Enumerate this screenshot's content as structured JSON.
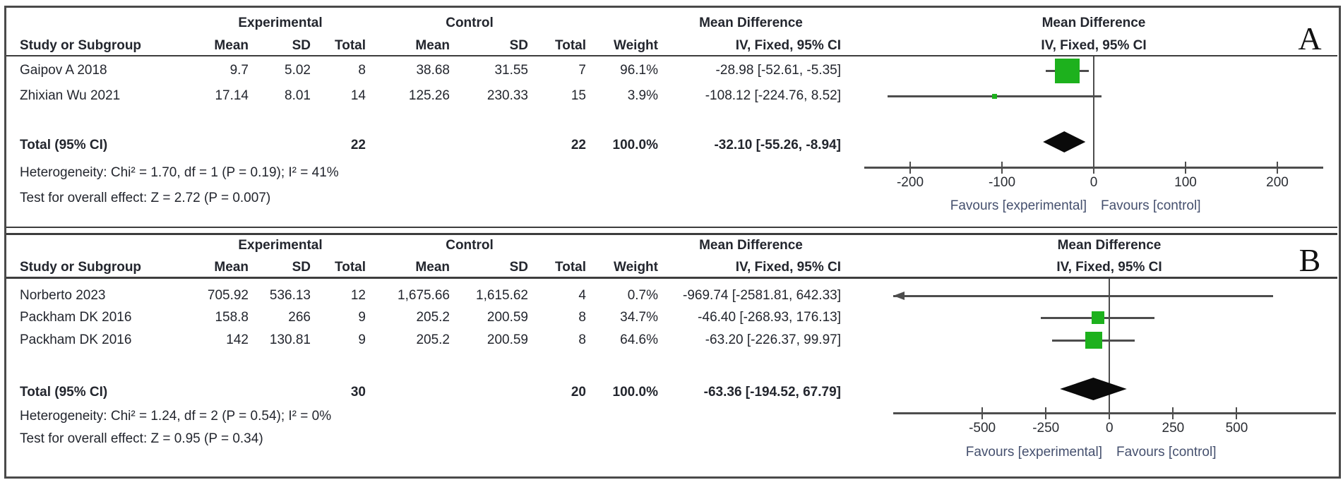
{
  "colors": {
    "marker_green": "#1db11d",
    "diamond_black": "#0a0a0a",
    "line_gray": "#4d4d4d"
  },
  "chart_data": [
    {
      "type": "scatter",
      "subtype": "forest-plot",
      "panel_label": "A",
      "group_headers": {
        "experimental": "Experimental",
        "control": "Control"
      },
      "effect_header": {
        "title": "Mean Difference",
        "subtitle": "IV, Fixed, 95% CI"
      },
      "plot_header": {
        "title": "Mean Difference",
        "subtitle": "IV, Fixed, 95% CI"
      },
      "column_headers": {
        "study": "Study or Subgroup",
        "exp_mean": "Mean",
        "exp_sd": "SD",
        "exp_total": "Total",
        "ctrl_mean": "Mean",
        "ctrl_sd": "SD",
        "ctrl_total": "Total",
        "weight": "Weight"
      },
      "studies": [
        {
          "name": "Gaipov A 2018",
          "exp_mean": "9.7",
          "exp_sd": "5.02",
          "exp_total": "8",
          "ctrl_mean": "38.68",
          "ctrl_sd": "31.55",
          "ctrl_total": "7",
          "weight": "96.1%",
          "ci_text": "-28.98 [-52.61, -5.35]",
          "md": -28.98,
          "ci_low": -52.61,
          "ci_high": -5.35,
          "weight_pct": 96.1
        },
        {
          "name": "Zhixian Wu 2021",
          "exp_mean": "17.14",
          "exp_sd": "8.01",
          "exp_total": "14",
          "ctrl_mean": "125.26",
          "ctrl_sd": "230.33",
          "ctrl_total": "15",
          "weight": "3.9%",
          "ci_text": "-108.12 [-224.76, 8.52]",
          "md": -108.12,
          "ci_low": -224.76,
          "ci_high": 8.52,
          "weight_pct": 3.9
        }
      ],
      "total": {
        "label": "Total (95% CI)",
        "exp_total": "22",
        "ctrl_total": "22",
        "weight": "100.0%",
        "ci_text": "-32.10 [-55.26, -8.94]",
        "md": -32.1,
        "ci_low": -55.26,
        "ci_high": -8.94
      },
      "heterogeneity": "Heterogeneity: Chi² = 1.70, df = 1 (P = 0.19); I² = 41%",
      "overall_effect": "Test for overall effect: Z = 2.72 (P = 0.007)",
      "axis": {
        "min": -250,
        "max": 250,
        "tick_values": [
          -200,
          -100,
          0,
          100,
          200
        ],
        "tick_labels": [
          "-200",
          "-100",
          "0",
          "100",
          "200"
        ]
      },
      "favours": {
        "left": "Favours [experimental]",
        "right": "Favours [control]"
      }
    },
    {
      "type": "scatter",
      "subtype": "forest-plot",
      "panel_label": "B",
      "group_headers": {
        "experimental": "Experimental",
        "control": "Control"
      },
      "effect_header": {
        "title": "Mean Difference",
        "subtitle": "IV, Fixed, 95% CI"
      },
      "plot_header": {
        "title": "Mean Difference",
        "subtitle": "IV, Fixed, 95% CI"
      },
      "column_headers": {
        "study": "Study or Subgroup",
        "exp_mean": "Mean",
        "exp_sd": "SD",
        "exp_total": "Total",
        "ctrl_mean": "Mean",
        "ctrl_sd": "SD",
        "ctrl_total": "Total",
        "weight": "Weight"
      },
      "studies": [
        {
          "name": "Norberto 2023",
          "exp_mean": "705.92",
          "exp_sd": "536.13",
          "exp_total": "12",
          "ctrl_mean": "1,675.66",
          "ctrl_sd": "1,615.62",
          "ctrl_total": "4",
          "weight": "0.7%",
          "ci_text": "-969.74 [-2581.81, 642.33]",
          "md": -969.74,
          "ci_low": -2581.81,
          "ci_high": 642.33,
          "weight_pct": 0.7
        },
        {
          "name": "Packham DK 2016",
          "exp_mean": "158.8",
          "exp_sd": "266",
          "exp_total": "9",
          "ctrl_mean": "205.2",
          "ctrl_sd": "200.59",
          "ctrl_total": "8",
          "weight": "34.7%",
          "ci_text": "-46.40 [-268.93, 176.13]",
          "md": -46.4,
          "ci_low": -268.93,
          "ci_high": 176.13,
          "weight_pct": 34.7
        },
        {
          "name": "Packham DK 2016",
          "exp_mean": "142",
          "exp_sd": "130.81",
          "exp_total": "9",
          "ctrl_mean": "205.2",
          "ctrl_sd": "200.59",
          "ctrl_total": "8",
          "weight": "64.6%",
          "ci_text": "-63.20 [-226.37, 99.97]",
          "md": -63.2,
          "ci_low": -226.37,
          "ci_high": 99.97,
          "weight_pct": 64.6
        }
      ],
      "total": {
        "label": "Total (95% CI)",
        "exp_total": "30",
        "ctrl_total": "20",
        "weight": "100.0%",
        "ci_text": "-63.36 [-194.52, 67.79]",
        "md": -63.36,
        "ci_low": -194.52,
        "ci_high": 67.79
      },
      "heterogeneity": "Heterogeneity: Chi² = 1.24, df = 2 (P = 0.54); I² = 0%",
      "overall_effect": "Test for overall effect: Z = 0.95 (P = 0.34)",
      "axis": {
        "min": -850,
        "max": 890,
        "tick_values": [
          -500,
          -250,
          0,
          250,
          500
        ],
        "tick_labels": [
          "-500",
          "-250",
          "0",
          "250",
          "500"
        ]
      },
      "favours": {
        "left": "Favours [experimental]",
        "right": "Favours [control]"
      }
    }
  ]
}
